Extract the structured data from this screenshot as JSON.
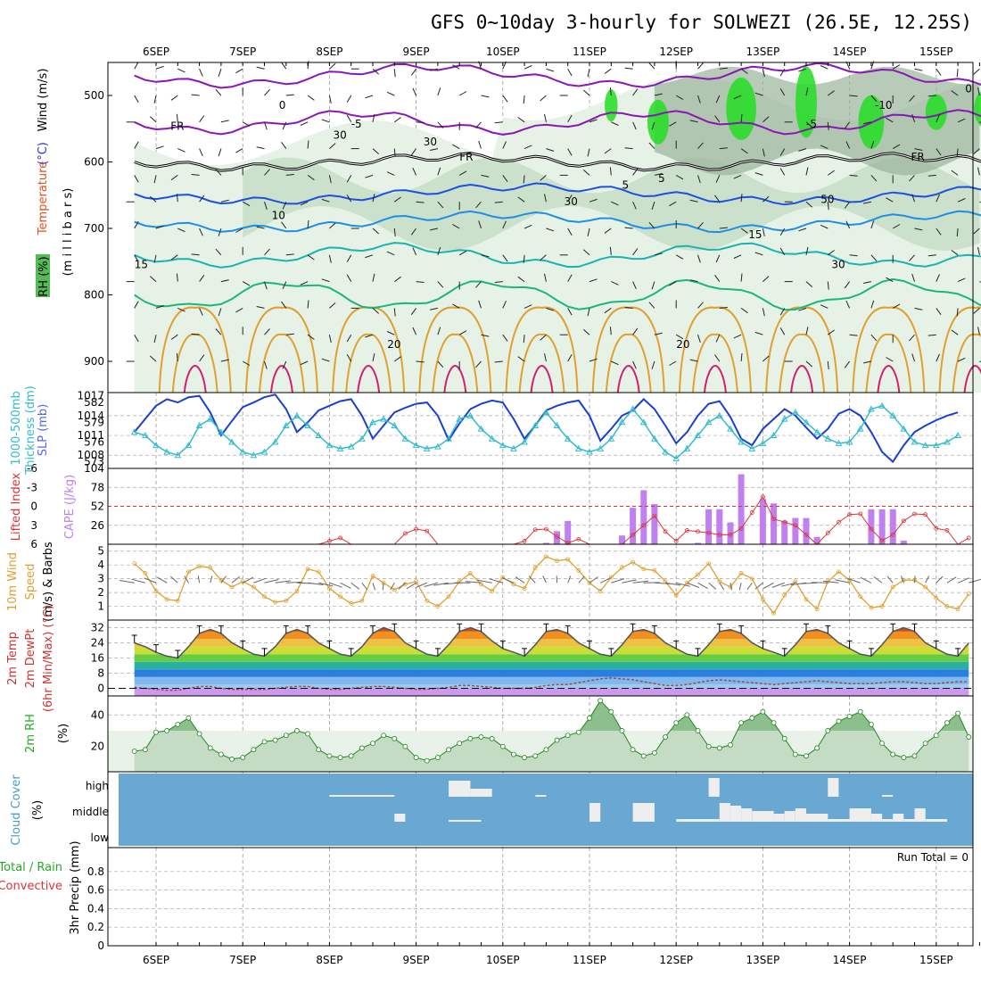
{
  "title": "GFS 0~10day 3-hourly for SOLWEZI (26.5E, 12.25S)",
  "colors": {
    "rh_light": "#e6f2e6",
    "rh_mid": "#c4dcc4",
    "rh_dark": "#9ab49a",
    "rh_green": "#22dd22",
    "temp_purple": "#8a17b5",
    "temp_blue": "#1d4fe0",
    "temp_lightblue": "#1f8fe6",
    "temp_teal": "#19b3b0",
    "temp_green": "#1cb67c",
    "temp_orange": "#e0a030",
    "temp_red": "#d02070",
    "slp": "#1a3fd0",
    "thickness": "#33bbcc",
    "cape": "#c080f0",
    "lifted": "#dd3333",
    "wind_speed": "#e0a030",
    "temp2m_line": "#555555",
    "dewpt": "#a04a4a",
    "rh2m_line": "#228822",
    "cloud_bg": "#6aa8d4",
    "cloud_block": "#eeeeee"
  },
  "x_axis": {
    "top_labels": [
      "6SEP",
      "7SEP",
      "8SEP",
      "9SEP",
      "10SEP",
      "11SEP",
      "12SEP",
      "13SEP",
      "14SEP",
      "15SEP"
    ],
    "bottom_labels": [
      "6SEP",
      "7SEP",
      "8SEP",
      "9SEP",
      "10SEP",
      "11SEP",
      "12SEP",
      "13SEP",
      "14SEP",
      "15SEP"
    ]
  },
  "panels": {
    "sounding": {
      "labels": [
        "RH (%)",
        "Temperature",
        "(°C)",
        "Wind (m/s)",
        "(m i l l i b a r s)"
      ],
      "yticks": [
        "500",
        "600",
        "700",
        "800",
        "900"
      ],
      "contour_labels": [
        "-5",
        "-5",
        "-10",
        "-5",
        "FR",
        "FR",
        "FR",
        "5",
        "10",
        "15",
        "15",
        "20",
        "20",
        "0",
        "0",
        "30",
        "30",
        "30",
        "30",
        "50",
        "5"
      ]
    },
    "pressure": {
      "left_labels": [
        "1000-500mb",
        "Thickness (dm)"
      ],
      "right_label": "SLP (mb)",
      "yticks_left": [
        "582",
        "579",
        "576",
        "573"
      ],
      "yticks_right": [
        "1017",
        "1014",
        "1011",
        "1008"
      ]
    },
    "cape": {
      "left_label": "Lifted Index",
      "right_label": "CAPE (J/kg)",
      "yticks_left": [
        "-6",
        "-3",
        "0",
        "3",
        "6"
      ],
      "yticks_right": [
        "104",
        "78",
        "52",
        "26"
      ]
    },
    "wind10m": {
      "labels": [
        "10m Wind",
        "Speed",
        "(m/s) & Barbs"
      ],
      "yticks": [
        "5",
        "4",
        "3",
        "2",
        "1"
      ]
    },
    "temp2m": {
      "labels": [
        "2m Temp",
        "2m DewPt",
        "(6hr Min/Max) (°C)"
      ],
      "yticks": [
        "32",
        "24",
        "16",
        "8",
        "0"
      ]
    },
    "rh2m": {
      "labels": [
        "2m RH",
        "(%)"
      ],
      "yticks": [
        "40",
        "20"
      ]
    },
    "cloud": {
      "labels": [
        "Cloud Cover",
        "(%)"
      ],
      "yticks": [
        "high",
        "middle",
        "low"
      ]
    },
    "precip": {
      "labels": [
        "Total / Rain",
        "Convective",
        "3hr Precip (mm)"
      ],
      "yticks": [
        "0.8",
        "0.6",
        "0.4",
        "0.2",
        "0"
      ],
      "run_total": "Run Total = 0"
    }
  },
  "chart_data": [
    {
      "type": "line",
      "title": "1000-500mb Thickness (dm) / SLP (mb)",
      "x": [
        "05SEP18",
        "05SEP21",
        "06SEP00",
        "06SEP03",
        "06SEP06",
        "06SEP09",
        "06SEP12",
        "06SEP15",
        "06SEP18",
        "06SEP21",
        "07SEP00",
        "07SEP03",
        "07SEP06",
        "07SEP09",
        "07SEP12",
        "07SEP15",
        "07SEP18",
        "07SEP21",
        "08SEP00",
        "08SEP03",
        "08SEP06",
        "08SEP09",
        "08SEP12",
        "08SEP15",
        "08SEP18",
        "08SEP21",
        "09SEP00",
        "09SEP03",
        "09SEP06",
        "09SEP09",
        "09SEP12",
        "09SEP15",
        "09SEP18",
        "09SEP21",
        "10SEP00",
        "10SEP03",
        "10SEP06",
        "10SEP09",
        "10SEP12",
        "10SEP15",
        "10SEP18",
        "10SEP21",
        "11SEP00",
        "11SEP03",
        "11SEP06",
        "11SEP09",
        "11SEP12",
        "11SEP15",
        "11SEP18",
        "11SEP21",
        "12SEP00",
        "12SEP03",
        "12SEP06",
        "12SEP09",
        "12SEP12",
        "12SEP15",
        "12SEP18",
        "12SEP21",
        "13SEP00",
        "13SEP03",
        "13SEP06",
        "13SEP09",
        "13SEP12",
        "13SEP15",
        "13SEP18",
        "13SEP21",
        "14SEP00",
        "14SEP03",
        "14SEP06",
        "14SEP09",
        "14SEP12",
        "14SEP15",
        "14SEP18",
        "14SEP21",
        "15SEP00",
        "15SEP03",
        "15SEP06"
      ],
      "series": [
        {
          "name": "SLP (mb)",
          "values": [
            1011.5,
            1013.5,
            1015.5,
            1016.5,
            1016,
            1016.8,
            1017,
            1014.5,
            1011,
            1013.2,
            1015.3,
            1016,
            1016.8,
            1017.2,
            1015,
            1011.5,
            1013,
            1014.8,
            1015.5,
            1016.2,
            1016.5,
            1014,
            1010.5,
            1012.5,
            1014.5,
            1015.2,
            1015.8,
            1016,
            1014,
            1010.3,
            1012.8,
            1015,
            1015.8,
            1016.3,
            1016,
            1013.5,
            1010.5,
            1012.5,
            1014.8,
            1015.5,
            1016,
            1016.3,
            1014,
            1010.2,
            1012,
            1014,
            1014.8,
            1016.5,
            1015,
            1012.5,
            1009.8,
            1011.5,
            1014,
            1015.8,
            1016.2,
            1013.8,
            1010.5,
            1009.5,
            1012,
            1013.5,
            1015,
            1014,
            1012.2,
            1010.5,
            1012,
            1014.3,
            1015,
            1014,
            1011.5,
            1008.5,
            1007,
            1009.5,
            1011.5,
            1012.5,
            1013.3,
            1014,
            1014.5
          ]
        },
        {
          "name": "1000-500mb Thickness (dm)",
          "values": [
            577.5,
            577,
            575.5,
            574.5,
            574,
            575.5,
            578.5,
            579.5,
            577.5,
            576,
            574.5,
            574,
            574.5,
            576,
            578.5,
            580,
            578.5,
            577,
            575.5,
            575,
            575.3,
            576.5,
            579,
            579.5,
            578.5,
            576.5,
            575.5,
            575,
            575.3,
            576.5,
            579.5,
            580,
            578,
            576.5,
            575.5,
            575,
            576,
            578.5,
            580.5,
            578.5,
            576.5,
            575,
            574.5,
            575,
            576.5,
            579,
            581,
            579,
            576.5,
            574.5,
            573.5,
            575,
            577,
            579,
            580,
            578,
            576,
            575,
            575.8,
            577,
            579.5,
            580.5,
            579,
            577.5,
            576.5,
            575.8,
            576,
            578,
            581,
            581.5,
            580,
            578,
            576,
            575.5,
            575.5,
            576,
            577
          ]
        }
      ],
      "yrange_slp": [
        1006,
        1017.5
      ],
      "yrange_thickness": [
        572,
        583.5
      ]
    },
    {
      "type": "bar",
      "title": "Lifted Index / CAPE (J/kg)",
      "categories": [
        "10SEP12",
        "10SEP15",
        "10SEP18",
        "11SEP09",
        "11SEP12",
        "11SEP15",
        "11SEP18",
        "12SEP06",
        "12SEP09",
        "12SEP12",
        "12SEP15",
        "13SEP06",
        "13SEP09",
        "13SEP12",
        "13SEP15",
        "14SEP06",
        "14SEP09",
        "14SEP12",
        "14SEP15"
      ],
      "series": [
        {
          "name": "CAPE (J/kg)",
          "values": [
            2,
            18,
            32,
            12,
            50,
            74,
            55,
            2,
            48,
            48,
            30,
            32,
            36,
            36,
            10,
            48,
            48,
            48,
            5
          ]
        }
      ],
      "cape_extra": [
        {
          "x": "12SEP18",
          "value": 96
        },
        {
          "x": "13SEP00",
          "value": 62
        },
        {
          "x": "13SEP03",
          "value": 56
        }
      ],
      "lifted_index": {
        "x_start": "05SEP18",
        "step_hours": 3,
        "values": [
          7,
          7,
          7,
          7,
          7,
          7,
          6.3,
          6.3,
          7,
          7,
          7,
          7,
          6.3,
          6.3,
          7,
          7,
          7,
          7,
          5.5,
          5,
          6.2,
          7,
          7,
          7,
          6,
          4.3,
          3.6,
          3.9,
          6.5,
          7,
          7,
          7,
          6.3,
          6.6,
          7,
          7,
          5.5,
          3.7,
          3.6,
          4.8,
          5.8,
          5.2,
          6,
          7,
          6.5,
          6,
          4.5,
          3,
          1.5,
          4,
          5.5,
          3.8,
          4,
          4.2,
          4.5,
          4.5,
          3.5,
          1,
          -1.5,
          2,
          2.5,
          3,
          4.5,
          6,
          4.2,
          2.5,
          1.3,
          1.2,
          3.6,
          5.4,
          4.5,
          2.3,
          1.2,
          1.3,
          3.5,
          3.8,
          6,
          5
        ]
      },
      "ylim_cape": [
        0,
        104
      ],
      "ylim_li": [
        6,
        -6
      ]
    },
    {
      "type": "line",
      "title": "10m Wind Speed (m/s) & Barbs",
      "x_start": "05SEP18",
      "step_hours": 3,
      "values": [
        4.1,
        3.4,
        2.1,
        1.5,
        1.4,
        3.5,
        3.9,
        3.8,
        2.9,
        2.4,
        2.8,
        2.4,
        1.7,
        1.3,
        1.4,
        2.1,
        3.7,
        3.5,
        2.3,
        1.7,
        1.2,
        1.4,
        3.2,
        2.7,
        2.2,
        2.6,
        2.8,
        1.4,
        1,
        1.7,
        2.8,
        3.4,
        2.6,
        2.1,
        3.1,
        2.6,
        2.3,
        3.8,
        4.6,
        4.3,
        4.4,
        3.6,
        2.7,
        2.1,
        3.1,
        3.8,
        4.2,
        3.7,
        3.6,
        2.8,
        1.8,
        2.7,
        3.3,
        4.1,
        2.8,
        2.4,
        3.4,
        3,
        1.5,
        0.5,
        1.8,
        2.8,
        1.5,
        0.8,
        2.8,
        3.5,
        2.9,
        1.7,
        0.9,
        1,
        2.4,
        2.9,
        2.9,
        2.4,
        1.6,
        1,
        0.8,
        1.9
      ],
      "ylim": [
        0,
        5.5
      ]
    },
    {
      "type": "area",
      "title": "2m Temp / 2m DewPt (6hr Min/Max) (°C)",
      "x_start": "05SEP18",
      "step_hours": 3,
      "temp": [
        24,
        22,
        19,
        17,
        16,
        22,
        29,
        31,
        29,
        24,
        21,
        18,
        17,
        22,
        29,
        31,
        29,
        24,
        21,
        18,
        17,
        22,
        29,
        32,
        30,
        24,
        21,
        18,
        17,
        23,
        30,
        32,
        30,
        25,
        21,
        19,
        17,
        23,
        30,
        31,
        29,
        24,
        21,
        18,
        17,
        23,
        30,
        31,
        29,
        24,
        21,
        18,
        17,
        23,
        30,
        31,
        29,
        24,
        21,
        19,
        17,
        23,
        30,
        31,
        29,
        24,
        21,
        18,
        17,
        23,
        30,
        32,
        30,
        24,
        21,
        18,
        17,
        24
      ],
      "dewpoint": [
        0.5,
        0,
        -0.5,
        -1,
        -1,
        0,
        1,
        1,
        0,
        -0.5,
        -0.5,
        -0.5,
        -0.5,
        0,
        0.5,
        1,
        1,
        0,
        -0.5,
        -0.5,
        0,
        0.5,
        1,
        1,
        0.5,
        0,
        -0.5,
        -0.5,
        0,
        0.5,
        1.5,
        1.5,
        1,
        0.5,
        0,
        0,
        0,
        0.5,
        1.5,
        2,
        2,
        3,
        4,
        5,
        5.5,
        5,
        4.5,
        3.5,
        2.5,
        1.5,
        1.5,
        2,
        3,
        4,
        4.5,
        4,
        3.5,
        3,
        2.5,
        2,
        2.5,
        3,
        3.5,
        4,
        3.5,
        3,
        2.5,
        2.5,
        2.5,
        3,
        3.5,
        3.5,
        3,
        2.5,
        2.5,
        3,
        3.5,
        3.5
      ],
      "ylim": [
        -4,
        36
      ]
    },
    {
      "type": "area",
      "title": "2m RH (%)",
      "x_start": "05SEP18",
      "step_hours": 3,
      "values": [
        17,
        18,
        29,
        30,
        34,
        38,
        28,
        19,
        15,
        12,
        13,
        18,
        23,
        24,
        27,
        30,
        28,
        18,
        14,
        13,
        14,
        19,
        22,
        27,
        25,
        20,
        13,
        11,
        13,
        18,
        22,
        25,
        26,
        25,
        20,
        15,
        13,
        14,
        18,
        24,
        27,
        29,
        38,
        49,
        42,
        30,
        18,
        14,
        16,
        26,
        35,
        40,
        30,
        20,
        19,
        21,
        35,
        38,
        42,
        35,
        25,
        15,
        14,
        19,
        30,
        36,
        39,
        42,
        34,
        22,
        15,
        13,
        14,
        22,
        27,
        35,
        41,
        26
      ],
      "ylim": [
        4,
        52
      ]
    },
    {
      "type": "heatmap",
      "title": "Cloud Cover (%)",
      "levels": [
        "high",
        "middle",
        "low"
      ],
      "high_blocks": [
        {
          "start": "08SEP00",
          "end": "08SEP18",
          "cover": 5
        },
        {
          "start": "09SEP09",
          "end": "09SEP15",
          "cover": 60
        },
        {
          "start": "09SEP15",
          "end": "09SEP21",
          "cover": 30
        },
        {
          "start": "10SEP09",
          "end": "10SEP12",
          "cover": 5
        },
        {
          "start": "12SEP09",
          "end": "12SEP12",
          "cover": 70
        },
        {
          "start": "13SEP18",
          "end": "13SEP21",
          "cover": 70
        },
        {
          "start": "14SEP09",
          "end": "14SEP12",
          "cover": 5
        }
      ],
      "middle_blocks": [
        {
          "start": "08SEP18",
          "end": "08SEP21",
          "cover": 30
        },
        {
          "start": "09SEP09",
          "end": "09SEP18",
          "cover": 5
        },
        {
          "start": "11SEP00",
          "end": "11SEP03",
          "cover": 70
        },
        {
          "start": "11SEP12",
          "end": "11SEP18",
          "cover": 70
        },
        {
          "start": "12SEP00",
          "end": "12SEP12",
          "cover": 10
        },
        {
          "start": "12SEP12",
          "end": "12SEP15",
          "cover": 70
        },
        {
          "start": "12SEP15",
          "end": "12SEP18",
          "cover": 60
        },
        {
          "start": "12SEP18",
          "end": "12SEP21",
          "cover": 50
        },
        {
          "start": "12SEP21",
          "end": "13SEP03",
          "cover": 40
        },
        {
          "start": "13SEP03",
          "end": "13SEP06",
          "cover": 30
        },
        {
          "start": "13SEP06",
          "end": "13SEP09",
          "cover": 40
        },
        {
          "start": "13SEP09",
          "end": "13SEP12",
          "cover": 50
        },
        {
          "start": "13SEP12",
          "end": "13SEP18",
          "cover": 30
        },
        {
          "start": "13SEP18",
          "end": "14SEP00",
          "cover": 10
        },
        {
          "start": "14SEP00",
          "end": "14SEP06",
          "cover": 50
        },
        {
          "start": "14SEP06",
          "end": "14SEP09",
          "cover": 30
        },
        {
          "start": "14SEP09",
          "end": "14SEP12",
          "cover": 10
        },
        {
          "start": "14SEP12",
          "end": "14SEP15",
          "cover": 30
        },
        {
          "start": "14SEP15",
          "end": "14SEP18",
          "cover": 10
        },
        {
          "start": "14SEP18",
          "end": "14SEP21",
          "cover": 50
        },
        {
          "start": "14SEP21",
          "end": "15SEP03",
          "cover": 10
        }
      ]
    },
    {
      "type": "line",
      "title": "3hr Precip (mm)",
      "x_start": "05SEP18",
      "step_hours": 3,
      "values": [],
      "ylim": [
        0,
        1
      ]
    }
  ]
}
